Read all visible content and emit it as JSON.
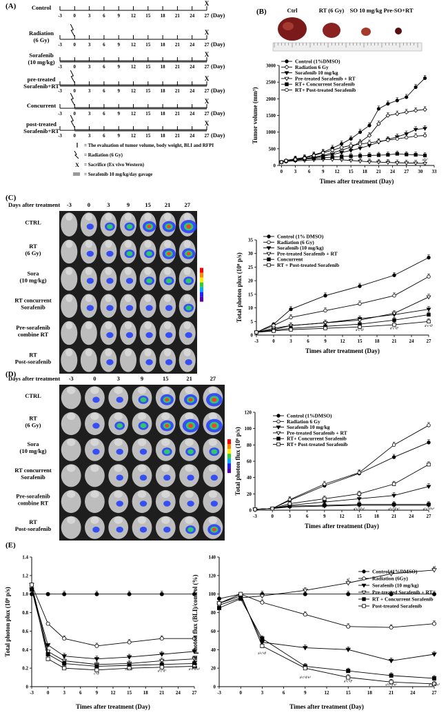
{
  "panels": {
    "A": "(A)",
    "B": "(B)",
    "C": "(C)",
    "D": "(D)",
    "E": "(E)"
  },
  "panelA": {
    "timeline_ticks": [
      "-3",
      "0",
      "3",
      "6",
      "9",
      "12",
      "15",
      "18",
      "21",
      "24",
      "27"
    ],
    "day_unit": "(Day)",
    "sacrifice_mark": "X",
    "groups": [
      {
        "label": [
          "Control"
        ],
        "radiation": false,
        "sora": "none"
      },
      {
        "label": [
          "Radiation",
          "(6 Gy)"
        ],
        "radiation": true,
        "sora": "none"
      },
      {
        "label": [
          "Sorafenib",
          "(10 mg/kg)"
        ],
        "radiation": false,
        "sora": "full"
      },
      {
        "label": [
          "pre-treated",
          "Sorafenib+RT"
        ],
        "radiation": true,
        "sora": "full"
      },
      {
        "label": [
          "Concurrent"
        ],
        "radiation": true,
        "sora": "post"
      },
      {
        "label": [
          "post-treated",
          "Sorafenib+RT"
        ],
        "radiation": true,
        "sora": "post"
      }
    ],
    "legend": [
      {
        "symbol": "|",
        "text": "= The evaluation of tumor volume, body weight, BLI and RFPI"
      },
      {
        "symbol": "bolt",
        "text": "= Radiation (6 Gy)"
      },
      {
        "symbol": "X",
        "text": "= Sacrifice (Ex vivo Western)"
      },
      {
        "symbol": "bar",
        "text": "= Sorafenib 10 mg/kg/day gavage"
      }
    ]
  },
  "panelB": {
    "photo_labels": [
      "Ctrl",
      "RT (6 Gy)",
      "SO 10 mg/kg",
      "Pre-SO+RT"
    ],
    "chart": {
      "type": "line",
      "ylabel": "Tumor volume (mm³)",
      "xlabel": "Times after treatment (Day)",
      "xticks": [
        0,
        3,
        6,
        9,
        12,
        15,
        18,
        21,
        24,
        27,
        30,
        33
      ],
      "yticks": [
        0,
        500,
        1000,
        1500,
        2000,
        2500,
        3000
      ],
      "xlim": [
        -0.5,
        33
      ],
      "ylim": [
        0,
        3000
      ],
      "series": [
        {
          "name": "Control (1%DMSO)",
          "marker": "filled-circle",
          "x": [
            0,
            1,
            3,
            5,
            7,
            9,
            11,
            13,
            15,
            17,
            19,
            21,
            23,
            25,
            27,
            29,
            31
          ],
          "y": [
            110,
            150,
            200,
            240,
            320,
            400,
            520,
            650,
            800,
            1000,
            1200,
            1700,
            1850,
            1950,
            2050,
            2350,
            2620
          ]
        },
        {
          "name": "Radiation 6 Gy",
          "marker": "open-diamond",
          "x": [
            0,
            1,
            3,
            5,
            7,
            9,
            11,
            13,
            15,
            17,
            19,
            21,
            23,
            25,
            27,
            29,
            31
          ],
          "y": [
            100,
            140,
            170,
            200,
            250,
            300,
            380,
            460,
            550,
            700,
            900,
            1250,
            1500,
            1550,
            1600,
            1650,
            1680
          ]
        },
        {
          "name": "Sorafenib 10 mg/kg",
          "marker": "filled-triangle",
          "x": [
            0,
            1,
            3,
            5,
            7,
            9,
            11,
            13,
            15,
            17,
            19,
            21,
            23,
            25,
            27,
            29,
            31
          ],
          "y": [
            100,
            130,
            160,
            190,
            230,
            280,
            330,
            390,
            450,
            520,
            600,
            700,
            780,
            860,
            950,
            1080,
            1110
          ]
        },
        {
          "name": "Pre-treated Sorafenib + RT",
          "marker": "open-triangle",
          "x": [
            0,
            1,
            3,
            5,
            7,
            9,
            11,
            13,
            15,
            17,
            19,
            21,
            23,
            25,
            27,
            29,
            31
          ],
          "y": [
            100,
            120,
            140,
            150,
            170,
            180,
            180,
            170,
            150,
            130,
            110,
            100,
            90,
            80,
            75,
            70,
            60
          ]
        },
        {
          "name": "RT+ Concurrent Sorafenib",
          "marker": "filled-square",
          "x": [
            0,
            1,
            3,
            5,
            7,
            9,
            11,
            13,
            15,
            17,
            19,
            21,
            23,
            25,
            27,
            29,
            31
          ],
          "y": [
            100,
            130,
            160,
            190,
            210,
            230,
            250,
            270,
            280,
            290,
            300,
            310,
            320,
            350,
            330,
            320,
            300
          ]
        },
        {
          "name": "RT+ Post-treated Sorafenib",
          "marker": "open-circle",
          "x": [
            0,
            1,
            3,
            5,
            7,
            9,
            11,
            13,
            15,
            17,
            19,
            21,
            23,
            25,
            27,
            29,
            31
          ],
          "y": [
            100,
            140,
            180,
            220,
            300,
            380,
            460,
            540,
            600,
            640,
            680,
            720,
            760,
            800,
            840,
            880,
            900
          ]
        }
      ],
      "annotations": [
        "a¹",
        "a¹",
        "a¹",
        "a¹",
        "a¹",
        "a¹",
        "a²b²"
      ]
    }
  },
  "panelC": {
    "days_label": "Days after treatment",
    "day_cols": [
      "-3",
      "0",
      "3",
      "9",
      "15",
      "21",
      "27"
    ],
    "row_labels": [
      [
        "CTRL"
      ],
      [
        "RT",
        "(6 Gy)"
      ],
      [
        "Sora",
        "(10 mg/kg)"
      ],
      [
        "RT concurrent",
        "Sorafenib"
      ],
      [
        "Pre-sorafenib",
        "combine RT"
      ],
      [
        "RT",
        "Post-sorafenib"
      ]
    ],
    "chart": {
      "type": "line",
      "ylabel": "Total photon plux (10⁸ p/s)",
      "xlabel": "Times after treatment (Day)",
      "xticks": [
        "-3",
        "0",
        "3",
        "6",
        "9",
        "12",
        "15",
        "18",
        "21",
        "24",
        "27"
      ],
      "yticks": [
        0,
        5,
        10,
        15,
        20,
        25,
        30,
        35
      ],
      "xlim": [
        -3,
        27
      ],
      "ylim": [
        0,
        35
      ],
      "x": [
        -3,
        0,
        3,
        9,
        15,
        21,
        27
      ],
      "series": [
        {
          "name": "Control (1% DMSO)",
          "marker": "filled-circle",
          "values": [
            1,
            4,
            9.5,
            14.5,
            18,
            22,
            28.5
          ]
        },
        {
          "name": "Radiation (6 Gy)",
          "marker": "open-circle",
          "values": [
            1,
            3.5,
            6.5,
            9,
            11.5,
            14.5,
            21.5
          ]
        },
        {
          "name": "Sorafenib (10 mg/kg)",
          "marker": "filled-triangle",
          "values": [
            1,
            2,
            3.5,
            4.5,
            6,
            7.5,
            9.5
          ]
        },
        {
          "name": "Pre-treated Sorafenib + RT",
          "marker": "open-triangle",
          "values": [
            1,
            2.5,
            3.5,
            4.5,
            5.5,
            8,
            14
          ]
        },
        {
          "name": "Concurrent",
          "marker": "filled-square",
          "values": [
            1,
            1.8,
            2.5,
            3.2,
            4,
            5.5,
            7.5
          ]
        },
        {
          "name": "RT + Post-treated Sorafenib",
          "marker": "open-square",
          "values": [
            1,
            1.5,
            2,
            2.5,
            3,
            3.8,
            5
          ]
        }
      ],
      "annotations": [
        "a¹c¹d¹",
        "a¹c¹d¹",
        "a¹c¹d¹"
      ]
    }
  },
  "panelD": {
    "days_label": "Days after treatment",
    "day_cols": [
      "-3",
      "0",
      "3",
      "9",
      "15",
      "21",
      "27"
    ],
    "row_labels": [
      [
        "CTRL"
      ],
      [
        "RT",
        "(6 Gy)"
      ],
      [
        "Sora",
        "(10 mg/kg)"
      ],
      [
        "RT concurrent",
        "Sorafenib"
      ],
      [
        "Pre-sorafenib",
        "combine RT"
      ],
      [
        "RT",
        "Post-sorafenib"
      ]
    ],
    "chart": {
      "type": "line",
      "ylabel": "Total photon flux (10⁶ p/s)",
      "xlabel": "Times after treatment (Day)",
      "xticks": [
        "-3",
        "0",
        "3",
        "6",
        "9",
        "12",
        "15",
        "18",
        "21",
        "24",
        "27"
      ],
      "yticks": [
        0,
        20,
        40,
        60,
        80,
        100,
        120
      ],
      "xlim": [
        -3,
        27
      ],
      "ylim": [
        0,
        120
      ],
      "x": [
        -3,
        0,
        3,
        9,
        15,
        21,
        27
      ],
      "series": [
        {
          "name": "Control (1%DMSO)",
          "marker": "filled-circle",
          "values": [
            1,
            2,
            12,
            30,
            45,
            65,
            83
          ]
        },
        {
          "name": "Radiation 6 Gy",
          "marker": "open-circle",
          "values": [
            1,
            2,
            13,
            32,
            46,
            80,
            104
          ]
        },
        {
          "name": "Sorafenib 10 mg/kg",
          "marker": "filled-triangle",
          "values": [
            1,
            2,
            6,
            10,
            14,
            18,
            29
          ]
        },
        {
          "name": "Pre-treated Sorafenib + RT",
          "marker": "open-triangle",
          "values": [
            1,
            2,
            4,
            5,
            6,
            6,
            6
          ]
        },
        {
          "name": "RT+ Concurrent Sorafenib",
          "marker": "filled-square",
          "values": [
            1,
            2,
            5,
            6,
            7,
            7,
            7
          ]
        },
        {
          "name": "RT+ Post-treated Sorafenib",
          "marker": "open-square",
          "values": [
            1,
            2,
            8,
            14,
            20,
            32,
            56
          ]
        }
      ],
      "annotations": [
        "c¹d¹",
        "a¹c¹d¹e¹",
        "a¹c¹d¹e¹",
        "a¹c¹d¹e¹"
      ]
    }
  },
  "panelE_left": {
    "type": "line",
    "ylabel": "Total photon plux (10⁸ p/s)",
    "xlabel": "Times after treatment (Day)",
    "xticks": [
      "-3",
      "0",
      "3",
      "6",
      "9",
      "12",
      "15",
      "18",
      "21",
      "24",
      "27"
    ],
    "yticks": [
      "0",
      "0.2",
      "0.4",
      "0.6",
      "0.8",
      "1.0",
      "1.2",
      "1.4"
    ],
    "xlim": [
      -3,
      27
    ],
    "ylim": [
      0,
      1.4
    ],
    "x": [
      -3,
      0,
      3,
      9,
      15,
      21,
      27
    ],
    "series": [
      {
        "name": "Control",
        "marker": "filled-circle",
        "values": [
          1,
          1,
          1,
          1,
          1,
          1,
          1
        ]
      },
      {
        "name": "Radiation",
        "marker": "open-circle",
        "values": [
          1.1,
          0.68,
          0.52,
          0.44,
          0.48,
          0.52,
          0.52
        ]
      },
      {
        "name": "Sorafenib",
        "marker": "filled-triangle",
        "values": [
          1.05,
          0.45,
          0.33,
          0.3,
          0.32,
          0.35,
          0.38
        ]
      },
      {
        "name": "Pre-treated",
        "marker": "open-triangle",
        "values": [
          1.1,
          0.38,
          0.28,
          0.24,
          0.25,
          0.28,
          0.3
        ]
      },
      {
        "name": "Concurrent",
        "marker": "filled-square",
        "values": [
          1.05,
          0.35,
          0.25,
          0.22,
          0.23,
          0.24,
          0.25
        ]
      },
      {
        "name": "Post-treated",
        "marker": "open-square",
        "values": [
          1.1,
          0.3,
          0.2,
          0.18,
          0.2,
          0.21,
          0.22
        ]
      }
    ],
    "annotations": [
      "c¹d¹",
      "a¹c¹d¹",
      "a¹c¹d¹",
      "a¹c¹d¹e¹"
    ]
  },
  "panelE_right": {
    "type": "line",
    "ylabel": "Total photon flux (BLI)/control (%)",
    "xlabel": "Times after treatment (Day)",
    "xticks": [
      "-3",
      "0",
      "3",
      "6",
      "9",
      "12",
      "15",
      "18",
      "21",
      "24",
      "27"
    ],
    "yticks": [
      "0",
      "20",
      "40",
      "60",
      "80",
      "100",
      "120",
      "140"
    ],
    "xlim": [
      -3,
      27
    ],
    "ylim": [
      0,
      140
    ],
    "x": [
      -3,
      0,
      3,
      9,
      15,
      21,
      27
    ],
    "series": [
      {
        "name": "Control (1%DMSO)",
        "marker": "filled-circle",
        "values": [
          95,
          100,
          100,
          100,
          100,
          100,
          100
        ]
      },
      {
        "name": "Radiation (6Gy)",
        "marker": "open-circle",
        "values": [
          90,
          100,
          91,
          78,
          65,
          64,
          68
        ]
      },
      {
        "name": "Sorafenib (10 mg/kg)",
        "marker": "filled-triangle",
        "values": [
          90,
          98,
          48,
          42,
          40,
          28,
          35
        ]
      },
      {
        "name": "Pre-treated Sorafenib + RT",
        "marker": "open-triangle",
        "values": [
          88,
          96,
          98,
          104,
          112,
          122,
          126
        ]
      },
      {
        "name": "RT + Concurrent Sorafenib",
        "marker": "filled-square",
        "values": [
          85,
          95,
          52,
          22,
          17,
          12,
          9
        ]
      },
      {
        "name": "Post-treated Sorafenib",
        "marker": "open-square",
        "values": [
          90,
          100,
          44,
          20,
          10,
          5,
          3
        ]
      }
    ],
    "annotations": [
      "a²",
      "a²",
      "a¹c¹d¹",
      "a¹c¹d¹e¹",
      "a¹c¹d¹",
      "a¹c¹d¹e¹",
      "a¹c¹d¹e¹"
    ]
  }
}
